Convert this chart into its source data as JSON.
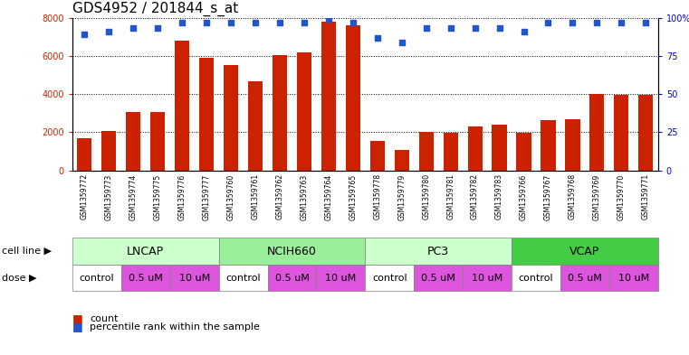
{
  "title": "GDS4952 / 201844_s_at",
  "samples": [
    "GSM1359772",
    "GSM1359773",
    "GSM1359774",
    "GSM1359775",
    "GSM1359776",
    "GSM1359777",
    "GSM1359760",
    "GSM1359761",
    "GSM1359762",
    "GSM1359763",
    "GSM1359764",
    "GSM1359765",
    "GSM1359778",
    "GSM1359779",
    "GSM1359780",
    "GSM1359781",
    "GSM1359782",
    "GSM1359783",
    "GSM1359766",
    "GSM1359767",
    "GSM1359768",
    "GSM1359769",
    "GSM1359770",
    "GSM1359771"
  ],
  "bar_values": [
    1700,
    2050,
    3050,
    3050,
    6800,
    5900,
    5500,
    4650,
    6050,
    6200,
    7800,
    7600,
    1550,
    1050,
    2000,
    1950,
    2300,
    2400,
    1950,
    2650,
    2700,
    4000,
    3950,
    3950
  ],
  "percentile_values": [
    89,
    91,
    93,
    93,
    97,
    97,
    97,
    97,
    97,
    97,
    99,
    97,
    87,
    84,
    93,
    93,
    93,
    93,
    91,
    97,
    97,
    97,
    97,
    97
  ],
  "cell_lines": [
    {
      "name": "LNCAP",
      "start": 0,
      "end": 6,
      "color": "#ccffcc"
    },
    {
      "name": "NCIH660",
      "start": 6,
      "end": 12,
      "color": "#99ee99"
    },
    {
      "name": "PC3",
      "start": 12,
      "end": 18,
      "color": "#ccffcc"
    },
    {
      "name": "VCAP",
      "start": 18,
      "end": 24,
      "color": "#44cc44"
    }
  ],
  "dose_group_defs": [
    {
      "name": "control",
      "start": 0,
      "end": 2,
      "color": "#ffffff"
    },
    {
      "name": "0.5 uM",
      "start": 2,
      "end": 4,
      "color": "#dd55dd"
    },
    {
      "name": "10 uM",
      "start": 4,
      "end": 6,
      "color": "#dd55dd"
    },
    {
      "name": "control",
      "start": 6,
      "end": 8,
      "color": "#ffffff"
    },
    {
      "name": "0.5 uM",
      "start": 8,
      "end": 10,
      "color": "#dd55dd"
    },
    {
      "name": "10 uM",
      "start": 10,
      "end": 12,
      "color": "#dd55dd"
    },
    {
      "name": "control",
      "start": 12,
      "end": 14,
      "color": "#ffffff"
    },
    {
      "name": "0.5 uM",
      "start": 14,
      "end": 16,
      "color": "#dd55dd"
    },
    {
      "name": "10 uM",
      "start": 16,
      "end": 18,
      "color": "#dd55dd"
    },
    {
      "name": "control",
      "start": 18,
      "end": 20,
      "color": "#ffffff"
    },
    {
      "name": "0.5 uM",
      "start": 20,
      "end": 22,
      "color": "#dd55dd"
    },
    {
      "name": "10 uM",
      "start": 22,
      "end": 24,
      "color": "#dd55dd"
    }
  ],
  "bar_color": "#cc2200",
  "dot_color": "#2255cc",
  "ylim_left": [
    0,
    8000
  ],
  "ylim_right": [
    0,
    100
  ],
  "yticks_left": [
    0,
    2000,
    4000,
    6000,
    8000
  ],
  "yticks_right": [
    0,
    25,
    50,
    75,
    100
  ],
  "background_color": "#ffffff",
  "plot_bg_color": "#ffffff",
  "sample_band_color": "#cccccc",
  "title_fontsize": 11,
  "tick_fontsize": 7,
  "sample_fontsize": 5.5,
  "legend_fontsize": 8,
  "cell_line_fontsize": 9,
  "dose_fontsize": 8,
  "label_fontsize": 8
}
